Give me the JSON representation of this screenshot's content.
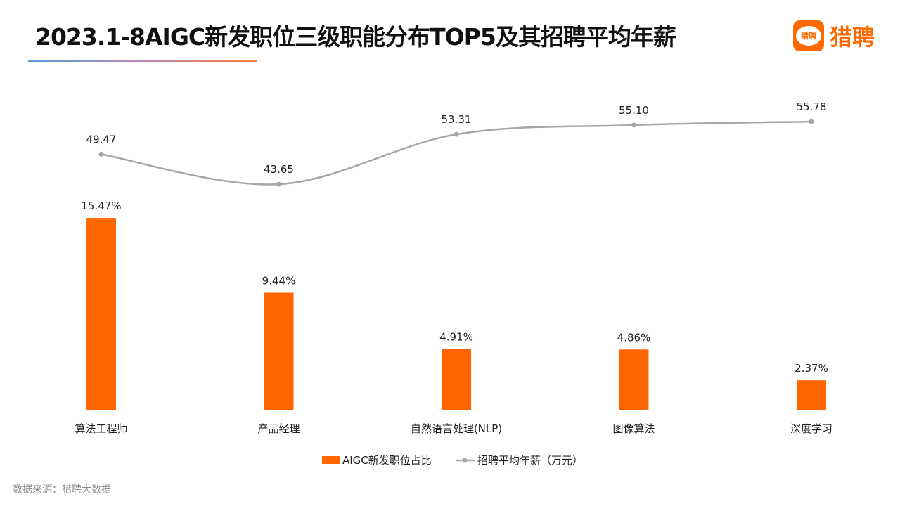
{
  "title": "2023.1-8AIGC新发职位三级职能分布TOP5及其招聘平均年薪",
  "logo": {
    "icon_text": "猎聘",
    "text": "猎聘"
  },
  "source": "数据来源：猎聘大数据",
  "colors": {
    "bar": "#ff6600",
    "line": "#a6a6a6",
    "brand": "#ff6a00"
  },
  "chart_data": {
    "type": "bar+line",
    "categories": [
      "算法工程师",
      "产品经理",
      "自然语言处理(NLP)",
      "图像算法",
      "深度学习"
    ],
    "series": [
      {
        "name": "AIGC新发职位占比",
        "type": "bar",
        "values": [
          15.47,
          9.44,
          4.91,
          4.86,
          2.37
        ],
        "labels": [
          "15.47%",
          "9.44%",
          "4.91%",
          "4.86%",
          "2.37%"
        ],
        "axis": "primary"
      },
      {
        "name": "招聘平均年薪（万元）",
        "type": "line",
        "smooth": true,
        "values": [
          49.47,
          43.65,
          53.31,
          55.1,
          55.78
        ],
        "labels": [
          "49.47",
          "43.65",
          "53.31",
          "55.10",
          "55.78"
        ],
        "axis": "secondary"
      }
    ],
    "primary_ylim": [
      0,
      25
    ],
    "secondary_ylim": [
      0,
      60
    ],
    "axes_visible": false,
    "grid": false,
    "legend": "bottom"
  }
}
